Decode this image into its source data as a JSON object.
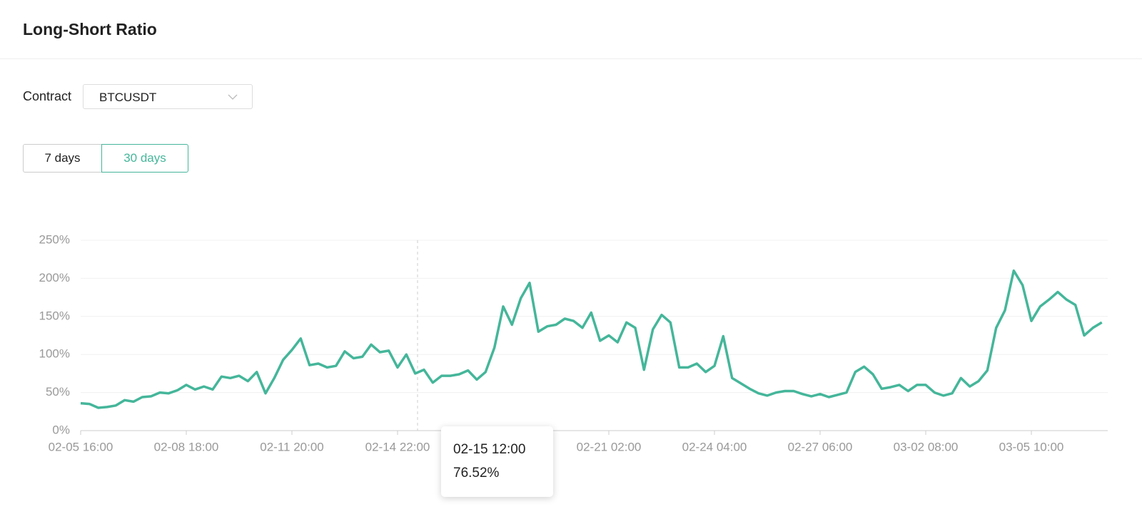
{
  "header": {
    "title": "Long-Short Ratio"
  },
  "contract": {
    "label": "Contract",
    "value": "BTCUSDT"
  },
  "tabs": [
    "7 days",
    "30 days"
  ],
  "tooltip": {
    "title": "02-15 12:00",
    "value": "76.52%"
  },
  "chart_data": {
    "type": "line",
    "categories": [
      "02-05 16:00",
      null,
      null,
      null,
      null,
      null,
      null,
      null,
      null,
      null,
      null,
      null,
      "02-08 18:00",
      null,
      null,
      null,
      null,
      null,
      null,
      null,
      null,
      null,
      null,
      null,
      "02-11 20:00",
      null,
      null,
      null,
      null,
      null,
      null,
      null,
      null,
      null,
      null,
      null,
      "02-14 22:00",
      null,
      null,
      null,
      null,
      null,
      null,
      null,
      null,
      null,
      null,
      null,
      null,
      null,
      null,
      null,
      null,
      null,
      null,
      null,
      null,
      null,
      null,
      null,
      "02-21 02:00",
      null,
      null,
      null,
      null,
      null,
      null,
      null,
      null,
      null,
      null,
      null,
      "02-24 04:00",
      null,
      null,
      null,
      null,
      null,
      null,
      null,
      null,
      null,
      null,
      null,
      "02-27 06:00",
      null,
      null,
      null,
      null,
      null,
      null,
      null,
      null,
      null,
      null,
      null,
      "03-02 08:00",
      null,
      null,
      null,
      null,
      null,
      null,
      null,
      null,
      null,
      null,
      null,
      "03-05 10:00",
      null,
      null,
      null,
      null,
      null,
      null,
      null,
      null
    ],
    "values": [
      36,
      35,
      30,
      31,
      33,
      40,
      38,
      44,
      45,
      50,
      49,
      53,
      60,
      54,
      58,
      54,
      71,
      69,
      72,
      65,
      77,
      49,
      69,
      93,
      106,
      121,
      86,
      88,
      83,
      85,
      104,
      95,
      97,
      113,
      103,
      105,
      83,
      100,
      75,
      80,
      63,
      72,
      72,
      74,
      79,
      67,
      77,
      109,
      163,
      139,
      174,
      194,
      130,
      137,
      139,
      147,
      144,
      135,
      155,
      118,
      125,
      116,
      142,
      135,
      80,
      133,
      152,
      142,
      83,
      83,
      88,
      77,
      85,
      124,
      69,
      62,
      55,
      49,
      46,
      50,
      52,
      52,
      48,
      45,
      48,
      44,
      47,
      50,
      77,
      84,
      74,
      55,
      57,
      60,
      52,
      60,
      60,
      50,
      46,
      49,
      69,
      58,
      65,
      79,
      135,
      158,
      210,
      191,
      144,
      163,
      172,
      182,
      172,
      165,
      125,
      135,
      142
    ],
    "color": "#45b69a",
    "ylim": [
      0,
      250
    ],
    "yticks": [
      {
        "value": 0,
        "label": "0%"
      },
      {
        "value": 50,
        "label": "50%"
      },
      {
        "value": 100,
        "label": "100%"
      },
      {
        "value": 150,
        "label": "150%"
      },
      {
        "value": 200,
        "label": "200%"
      },
      {
        "value": 250,
        "label": "250%"
      }
    ],
    "grid": true
  }
}
